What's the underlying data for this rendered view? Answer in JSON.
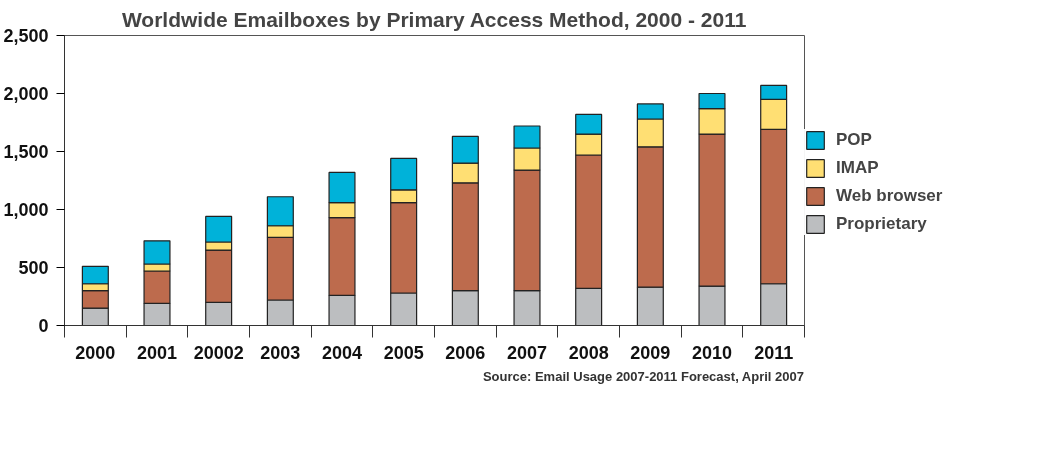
{
  "chart_data": {
    "type": "bar",
    "stacked": true,
    "title": "Worldwide Emailboxes by Primary Access Method, 2000 - 2011",
    "categories": [
      "2000",
      "2001",
      "20002",
      "2003",
      "2004",
      "2005",
      "2006",
      "2007",
      "2008",
      "2009",
      "2010",
      "2011"
    ],
    "series": [
      {
        "name": "Proprietary",
        "color": "#bcbec0",
        "values": [
          150,
          190,
          200,
          220,
          260,
          280,
          300,
          300,
          320,
          330,
          340,
          360
        ]
      },
      {
        "name": "Web browser",
        "color": "#bd6b4d",
        "values": [
          150,
          280,
          450,
          540,
          670,
          780,
          930,
          1040,
          1150,
          1210,
          1310,
          1330
        ]
      },
      {
        "name": "IMAP",
        "color": "#ffdf73",
        "values": [
          60,
          60,
          70,
          100,
          130,
          110,
          170,
          190,
          180,
          240,
          220,
          260
        ]
      },
      {
        "name": "POP",
        "color": "#00b2d9",
        "values": [
          150,
          200,
          220,
          250,
          260,
          270,
          230,
          190,
          170,
          130,
          130,
          120
        ]
      }
    ],
    "ylim": [
      0,
      2500
    ],
    "yticks": [
      0,
      500,
      {
        "value": 1000,
        "label": "1,000"
      },
      {
        "value": 1500,
        "label": "1,500"
      },
      {
        "value": 2000,
        "label": "2,000"
      },
      {
        "value": 2500,
        "label": "2,500"
      }
    ],
    "grid": false,
    "legend": "right",
    "annotations": [
      "Source: Email Usage 2007-2011 Forecast, April 2007"
    ]
  }
}
